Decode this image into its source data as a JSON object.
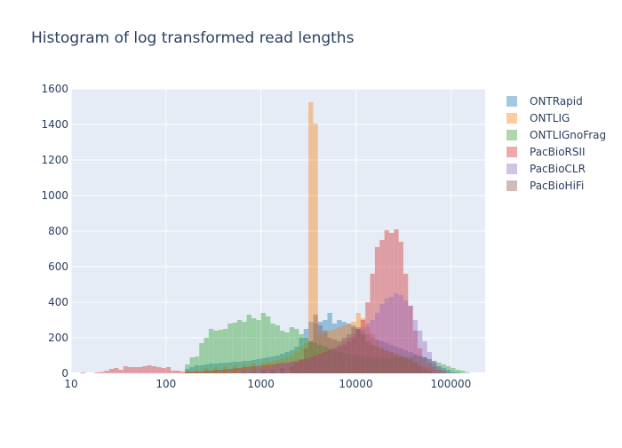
{
  "chart_data": {
    "type": "histogram",
    "title": "Histogram of log transformed read lengths",
    "xlabel": "",
    "ylabel": "",
    "x_scale": "log",
    "xlim": [
      10,
      230000
    ],
    "ylim": [
      0,
      1600
    ],
    "x_ticks": [
      10,
      100,
      1000,
      10000,
      100000
    ],
    "x_tick_labels": [
      "10",
      "100",
      "1000",
      "10000",
      "100000"
    ],
    "y_ticks": [
      0,
      200,
      400,
      600,
      800,
      1000,
      1200,
      1400,
      1600
    ],
    "y_tick_labels": [
      "0",
      "200",
      "400",
      "600",
      "800",
      "1000",
      "1200",
      "1400",
      "1600"
    ],
    "grid": true,
    "legend_position": "right",
    "bin_width_log10": 0.05,
    "series": [
      {
        "name": "ONTRapid",
        "color": "#1f77b4",
        "bins": [
          [
            2.2,
            25
          ],
          [
            2.25,
            35
          ],
          [
            2.3,
            45
          ],
          [
            2.35,
            45
          ],
          [
            2.4,
            50
          ],
          [
            2.45,
            55
          ],
          [
            2.5,
            55
          ],
          [
            2.55,
            58
          ],
          [
            2.6,
            60
          ],
          [
            2.65,
            62
          ],
          [
            2.7,
            65
          ],
          [
            2.75,
            65
          ],
          [
            2.8,
            70
          ],
          [
            2.85,
            70
          ],
          [
            2.9,
            75
          ],
          [
            2.95,
            80
          ],
          [
            3.0,
            85
          ],
          [
            3.05,
            90
          ],
          [
            3.1,
            95
          ],
          [
            3.15,
            100
          ],
          [
            3.2,
            110
          ],
          [
            3.25,
            120
          ],
          [
            3.3,
            130
          ],
          [
            3.35,
            150
          ],
          [
            3.4,
            200
          ],
          [
            3.45,
            250
          ],
          [
            3.5,
            290
          ],
          [
            3.55,
            280
          ],
          [
            3.6,
            290
          ],
          [
            3.65,
            300
          ],
          [
            3.7,
            340
          ],
          [
            3.75,
            280
          ],
          [
            3.8,
            300
          ],
          [
            3.85,
            290
          ],
          [
            3.9,
            280
          ],
          [
            3.95,
            270
          ],
          [
            4.0,
            260
          ],
          [
            4.05,
            240
          ],
          [
            4.1,
            220
          ],
          [
            4.15,
            200
          ],
          [
            4.2,
            190
          ],
          [
            4.25,
            180
          ],
          [
            4.3,
            170
          ],
          [
            4.35,
            160
          ],
          [
            4.4,
            150
          ],
          [
            4.45,
            140
          ],
          [
            4.5,
            130
          ],
          [
            4.55,
            120
          ],
          [
            4.6,
            110
          ],
          [
            4.65,
            100
          ],
          [
            4.7,
            90
          ],
          [
            4.75,
            80
          ],
          [
            4.8,
            60
          ],
          [
            4.85,
            40
          ],
          [
            4.9,
            30
          ],
          [
            4.95,
            20
          ],
          [
            5.0,
            10
          ],
          [
            5.05,
            5
          ]
        ]
      },
      {
        "name": "ONTLIG",
        "color": "#ff7f0e",
        "bins": [
          [
            2.2,
            10
          ],
          [
            2.3,
            20
          ],
          [
            2.4,
            30
          ],
          [
            2.5,
            35
          ],
          [
            2.6,
            40
          ],
          [
            2.7,
            45
          ],
          [
            2.8,
            50
          ],
          [
            2.9,
            55
          ],
          [
            3.0,
            60
          ],
          [
            3.05,
            65
          ],
          [
            3.1,
            70
          ],
          [
            3.15,
            75
          ],
          [
            3.2,
            80
          ],
          [
            3.25,
            90
          ],
          [
            3.3,
            100
          ],
          [
            3.35,
            120
          ],
          [
            3.4,
            150
          ],
          [
            3.45,
            170
          ],
          [
            3.5,
            1525
          ],
          [
            3.55,
            1405
          ],
          [
            3.6,
            220
          ],
          [
            3.65,
            230
          ],
          [
            3.7,
            240
          ],
          [
            3.75,
            250
          ],
          [
            3.8,
            260
          ],
          [
            3.85,
            270
          ],
          [
            3.9,
            280
          ],
          [
            3.95,
            290
          ],
          [
            4.0,
            340
          ],
          [
            4.05,
            310
          ],
          [
            4.1,
            260
          ],
          [
            4.15,
            220
          ],
          [
            4.2,
            180
          ],
          [
            4.25,
            150
          ],
          [
            4.3,
            120
          ],
          [
            4.35,
            110
          ],
          [
            4.4,
            100
          ],
          [
            4.45,
            90
          ],
          [
            4.5,
            80
          ],
          [
            4.55,
            70
          ],
          [
            4.6,
            60
          ],
          [
            4.65,
            50
          ],
          [
            4.7,
            40
          ],
          [
            4.75,
            30
          ],
          [
            4.8,
            20
          ],
          [
            4.85,
            10
          ],
          [
            4.9,
            5
          ]
        ]
      },
      {
        "name": "ONTLIGnoFrag",
        "color": "#2ca02c",
        "bins": [
          [
            2.2,
            50
          ],
          [
            2.25,
            90
          ],
          [
            2.3,
            95
          ],
          [
            2.35,
            170
          ],
          [
            2.4,
            200
          ],
          [
            2.45,
            250
          ],
          [
            2.5,
            240
          ],
          [
            2.55,
            245
          ],
          [
            2.6,
            250
          ],
          [
            2.65,
            280
          ],
          [
            2.7,
            285
          ],
          [
            2.75,
            300
          ],
          [
            2.8,
            290
          ],
          [
            2.85,
            330
          ],
          [
            2.9,
            310
          ],
          [
            2.95,
            300
          ],
          [
            3.0,
            340
          ],
          [
            3.05,
            320
          ],
          [
            3.1,
            280
          ],
          [
            3.15,
            270
          ],
          [
            3.2,
            240
          ],
          [
            3.25,
            230
          ],
          [
            3.3,
            260
          ],
          [
            3.35,
            250
          ],
          [
            3.4,
            220
          ],
          [
            3.45,
            200
          ],
          [
            3.5,
            180
          ],
          [
            3.55,
            170
          ],
          [
            3.6,
            160
          ],
          [
            3.65,
            150
          ],
          [
            3.7,
            140
          ],
          [
            3.75,
            130
          ],
          [
            3.8,
            120
          ],
          [
            3.85,
            115
          ],
          [
            3.9,
            110
          ],
          [
            3.95,
            105
          ],
          [
            4.0,
            100
          ],
          [
            4.05,
            95
          ],
          [
            4.1,
            90
          ],
          [
            4.15,
            90
          ],
          [
            4.2,
            88
          ],
          [
            4.25,
            85
          ],
          [
            4.3,
            85
          ],
          [
            4.35,
            85
          ],
          [
            4.4,
            88
          ],
          [
            4.45,
            90
          ],
          [
            4.5,
            92
          ],
          [
            4.55,
            95
          ],
          [
            4.6,
            100
          ],
          [
            4.65,
            95
          ],
          [
            4.7,
            90
          ],
          [
            4.75,
            80
          ],
          [
            4.8,
            70
          ],
          [
            4.85,
            60
          ],
          [
            4.9,
            50
          ],
          [
            4.95,
            40
          ],
          [
            5.0,
            30
          ],
          [
            5.05,
            20
          ],
          [
            5.1,
            15
          ],
          [
            5.15,
            5
          ]
        ]
      },
      {
        "name": "PacBioRSII",
        "color": "#d62728",
        "bins": [
          [
            1.1,
            5
          ],
          [
            1.25,
            5
          ],
          [
            1.3,
            8
          ],
          [
            1.35,
            15
          ],
          [
            1.4,
            25
          ],
          [
            1.45,
            30
          ],
          [
            1.5,
            20
          ],
          [
            1.55,
            40
          ],
          [
            1.6,
            35
          ],
          [
            1.65,
            35
          ],
          [
            1.7,
            35
          ],
          [
            1.75,
            40
          ],
          [
            1.8,
            45
          ],
          [
            1.85,
            40
          ],
          [
            1.9,
            35
          ],
          [
            1.95,
            30
          ],
          [
            2.0,
            35
          ],
          [
            2.05,
            15
          ],
          [
            2.1,
            15
          ],
          [
            2.15,
            10
          ],
          [
            2.2,
            10
          ],
          [
            2.25,
            10
          ],
          [
            2.3,
            10
          ],
          [
            2.35,
            12
          ],
          [
            2.4,
            15
          ],
          [
            2.45,
            15
          ],
          [
            2.5,
            18
          ],
          [
            2.55,
            20
          ],
          [
            2.6,
            22
          ],
          [
            2.65,
            25
          ],
          [
            2.7,
            28
          ],
          [
            2.75,
            30
          ],
          [
            2.8,
            35
          ],
          [
            2.85,
            38
          ],
          [
            2.9,
            40
          ],
          [
            2.95,
            42
          ],
          [
            3.0,
            45
          ],
          [
            3.05,
            48
          ],
          [
            3.1,
            50
          ],
          [
            3.15,
            55
          ],
          [
            3.2,
            58
          ],
          [
            3.25,
            60
          ],
          [
            3.3,
            65
          ],
          [
            3.35,
            70
          ],
          [
            3.4,
            75
          ],
          [
            3.45,
            80
          ],
          [
            3.5,
            90
          ],
          [
            3.55,
            100
          ],
          [
            3.6,
            110
          ],
          [
            3.65,
            120
          ],
          [
            3.7,
            130
          ],
          [
            3.75,
            140
          ],
          [
            3.8,
            150
          ],
          [
            3.85,
            160
          ],
          [
            3.9,
            180
          ],
          [
            3.95,
            200
          ],
          [
            4.0,
            250
          ],
          [
            4.05,
            300
          ],
          [
            4.1,
            400
          ],
          [
            4.15,
            560
          ],
          [
            4.2,
            710
          ],
          [
            4.25,
            750
          ],
          [
            4.3,
            805
          ],
          [
            4.35,
            790
          ],
          [
            4.4,
            810
          ],
          [
            4.45,
            740
          ],
          [
            4.5,
            560
          ],
          [
            4.55,
            380
          ],
          [
            4.6,
            240
          ],
          [
            4.65,
            140
          ],
          [
            4.7,
            90
          ],
          [
            4.75,
            60
          ],
          [
            4.8,
            40
          ],
          [
            4.85,
            20
          ],
          [
            4.9,
            10
          ]
        ]
      },
      {
        "name": "PacBioCLR",
        "color": "#9467bd",
        "bins": [
          [
            2.8,
            10
          ],
          [
            2.85,
            15
          ],
          [
            2.9,
            20
          ],
          [
            2.95,
            25
          ],
          [
            3.0,
            30
          ],
          [
            3.05,
            35
          ],
          [
            3.1,
            40
          ],
          [
            3.15,
            45
          ],
          [
            3.2,
            50
          ],
          [
            3.25,
            55
          ],
          [
            3.3,
            60
          ],
          [
            3.35,
            65
          ],
          [
            3.4,
            70
          ],
          [
            3.45,
            75
          ],
          [
            3.5,
            80
          ],
          [
            3.55,
            90
          ],
          [
            3.6,
            100
          ],
          [
            3.65,
            110
          ],
          [
            3.7,
            120
          ],
          [
            3.75,
            140
          ],
          [
            3.8,
            160
          ],
          [
            3.85,
            180
          ],
          [
            3.9,
            200
          ],
          [
            3.95,
            220
          ],
          [
            4.0,
            240
          ],
          [
            4.05,
            260
          ],
          [
            4.1,
            280
          ],
          [
            4.15,
            300
          ],
          [
            4.2,
            340
          ],
          [
            4.25,
            390
          ],
          [
            4.3,
            420
          ],
          [
            4.35,
            430
          ],
          [
            4.4,
            450
          ],
          [
            4.45,
            440
          ],
          [
            4.5,
            410
          ],
          [
            4.55,
            380
          ],
          [
            4.6,
            300
          ],
          [
            4.65,
            240
          ],
          [
            4.7,
            180
          ],
          [
            4.75,
            120
          ],
          [
            4.8,
            70
          ],
          [
            4.85,
            40
          ],
          [
            4.9,
            20
          ],
          [
            4.95,
            10
          ]
        ]
      },
      {
        "name": "PacBioHiFi",
        "color": "#8c564b",
        "bins": [
          [
            2.8,
            5
          ],
          [
            2.9,
            10
          ],
          [
            3.0,
            15
          ],
          [
            3.1,
            20
          ],
          [
            3.2,
            30
          ],
          [
            3.3,
            40
          ],
          [
            3.35,
            60
          ],
          [
            3.4,
            80
          ],
          [
            3.45,
            140
          ],
          [
            3.5,
            180
          ],
          [
            3.55,
            330
          ],
          [
            3.6,
            270
          ],
          [
            3.65,
            240
          ],
          [
            3.7,
            200
          ],
          [
            3.75,
            190
          ],
          [
            3.8,
            180
          ],
          [
            3.85,
            200
          ],
          [
            3.9,
            220
          ],
          [
            3.95,
            260
          ],
          [
            4.0,
            250
          ],
          [
            4.05,
            220
          ],
          [
            4.1,
            180
          ],
          [
            4.15,
            160
          ],
          [
            4.2,
            150
          ],
          [
            4.25,
            140
          ],
          [
            4.3,
            130
          ],
          [
            4.35,
            120
          ],
          [
            4.4,
            110
          ],
          [
            4.45,
            100
          ],
          [
            4.5,
            90
          ],
          [
            4.55,
            80
          ],
          [
            4.6,
            60
          ],
          [
            4.65,
            40
          ],
          [
            4.7,
            25
          ],
          [
            4.75,
            10
          ]
        ]
      }
    ]
  }
}
